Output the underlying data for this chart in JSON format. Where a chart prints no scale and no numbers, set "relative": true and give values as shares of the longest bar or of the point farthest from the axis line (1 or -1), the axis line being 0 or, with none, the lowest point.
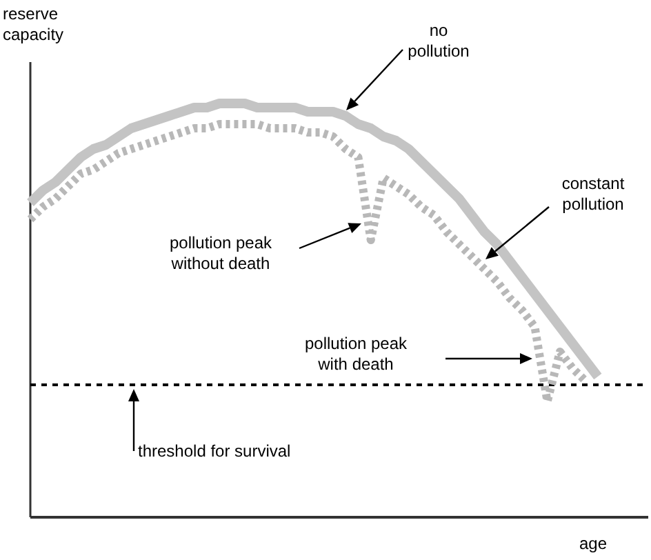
{
  "chart_data": {
    "type": "line",
    "relative": true,
    "xlabel": "age",
    "ylabel": "reserve\ncapacity",
    "categories": [
      null,
      null,
      null,
      null,
      null,
      null,
      null,
      null,
      null,
      null,
      null,
      null,
      null,
      null,
      null,
      null,
      null,
      null,
      null,
      null,
      null,
      null,
      null,
      null,
      null,
      null,
      null,
      null,
      null,
      null,
      null,
      null,
      null,
      null,
      null,
      null,
      null,
      null,
      null,
      null,
      null,
      null,
      null,
      null,
      null,
      null,
      null,
      null,
      null,
      null
    ],
    "series": [
      {
        "color": "#c4c4c4",
        "line_style": "solid",
        "values": [
          0.76,
          0.79,
          0.81,
          0.84,
          0.87,
          0.89,
          0.9,
          0.92,
          0.94,
          0.95,
          0.96,
          0.97,
          0.98,
          0.99,
          0.99,
          1,
          1,
          1,
          0.99,
          0.99,
          0.99,
          0.99,
          0.98,
          0.98,
          0.98,
          0.97,
          0.95,
          0.94,
          0.92,
          0.91,
          0.89,
          0.86,
          0.83,
          0.8,
          0.77,
          0.73,
          0.69,
          0.66,
          0.62,
          0.58,
          0.54,
          0.5,
          0.46,
          0.42,
          0.38,
          0.34,
          null,
          null,
          null,
          null
        ]
      },
      {
        "color": "#b8b8b8",
        "line_style": "dotted",
        "values": [
          0.72,
          0.75,
          0.77,
          0.8,
          0.83,
          0.84,
          0.86,
          0.88,
          0.89,
          0.9,
          0.91,
          0.92,
          0.93,
          0.94,
          0.94,
          0.95,
          0.95,
          0.95,
          0.95,
          0.94,
          0.94,
          0.94,
          0.93,
          0.93,
          0.92,
          0.89,
          0.87,
          0.67,
          0.82,
          0.8,
          0.78,
          0.75,
          0.73,
          0.69,
          0.66,
          0.63,
          0.6,
          0.57,
          0.53,
          0.5,
          0.46,
          0.28,
          0.4,
          0.36,
          0.33,
          null,
          null,
          null,
          null,
          null
        ]
      }
    ],
    "ref_lines": [
      {
        "axis": "y",
        "value": 0.32,
        "label": "threshold for survival",
        "color": "#000000",
        "line_style": "dashed"
      }
    ],
    "annotations": [
      "no\npollution",
      "constant\npollution",
      "pollution peak\nwithout death",
      "pollution peak\nwith death"
    ]
  }
}
